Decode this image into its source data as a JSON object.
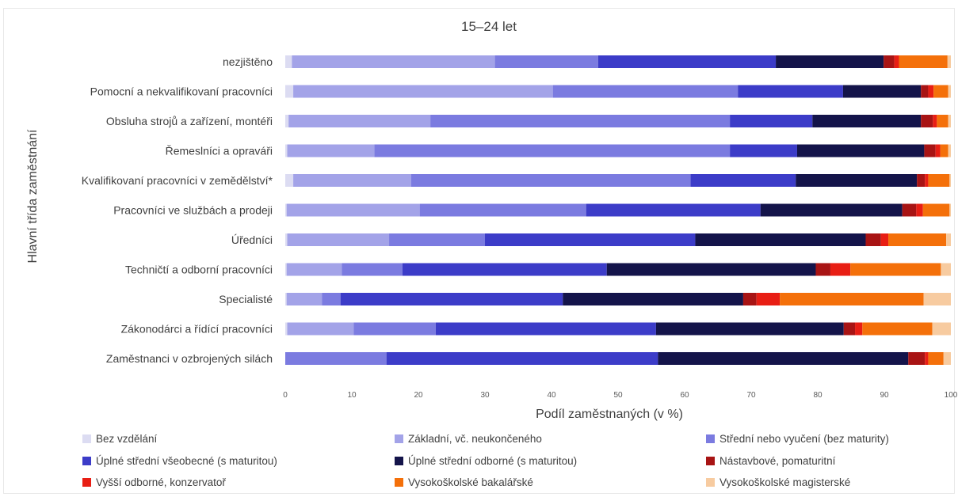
{
  "chart_data": {
    "type": "bar",
    "orientation": "horizontal",
    "stacked": true,
    "title": "15–24 let",
    "xlabel": "Podíl zaměstnaných (v %)",
    "ylabel": "Hlavní třída zaměstnání",
    "xlim": [
      0,
      100
    ],
    "xticks": [
      "0",
      "10",
      "20",
      "30",
      "40",
      "50",
      "60",
      "70",
      "80",
      "90",
      "100"
    ],
    "grid": false,
    "legend_position": "bottom",
    "categories": [
      "nezjištěno",
      "Pomocní a nekvalifikovaní pracovníci",
      "Obsluha strojů a zařízení, montéři",
      "Řemeslníci a opraváři",
      "Kvalifikovaní pracovníci v zemědělství*",
      "Pracovníci ve službách a prodeji",
      "Úředníci",
      "Techničtí a odborní pracovníci",
      "Specialisté",
      "Zákonodárci a řídící pracovníci",
      "Zaměstnanci v ozbrojených silách"
    ],
    "series": [
      {
        "name": "Bez vzdělání",
        "color": "#dcdcf2",
        "values": [
          1.0,
          1.2,
          0.5,
          0.3,
          1.2,
          0.2,
          0.3,
          0.2,
          0.2,
          0.3,
          0.0
        ]
      },
      {
        "name": "Základní, vč. neukončeného",
        "color": "#a3a3e8",
        "values": [
          30.5,
          39.0,
          21.3,
          13.1,
          17.7,
          20.0,
          15.3,
          8.3,
          5.3,
          10.0,
          0.0
        ]
      },
      {
        "name": "Střední nebo vyučení (bez maturity)",
        "color": "#7b7be0",
        "values": [
          15.5,
          27.8,
          45.0,
          53.4,
          42.0,
          25.0,
          14.4,
          9.1,
          2.8,
          12.3,
          15.2
        ]
      },
      {
        "name": "Úplné střední všeobecné (s maturitou)",
        "color": "#3c3cc8",
        "values": [
          26.7,
          15.8,
          12.4,
          10.1,
          15.8,
          26.2,
          31.6,
          30.7,
          33.4,
          33.1,
          40.8
        ]
      },
      {
        "name": "Úplné střední odborné (s maturitou)",
        "color": "#14144a",
        "values": [
          16.2,
          11.7,
          16.3,
          19.1,
          18.2,
          21.3,
          25.6,
          31.4,
          27.1,
          28.2,
          37.6
        ]
      },
      {
        "name": "Nástavbové, pomaturitní",
        "color": "#a81414",
        "values": [
          1.6,
          1.1,
          1.8,
          1.7,
          1.2,
          2.1,
          2.3,
          2.2,
          2.0,
          1.7,
          2.5
        ]
      },
      {
        "name": "Vyšší odborné, konzervatoř",
        "color": "#e81e14",
        "values": [
          0.7,
          0.8,
          0.6,
          0.7,
          0.5,
          1.0,
          1.1,
          3.0,
          3.5,
          1.1,
          0.5
        ]
      },
      {
        "name": "Vysokoškolské bakalářské",
        "color": "#f4700a",
        "values": [
          7.3,
          2.2,
          1.7,
          1.2,
          3.2,
          4.0,
          8.7,
          13.6,
          21.6,
          10.5,
          2.3
        ]
      },
      {
        "name": "Vysokoškolské magisterské",
        "color": "#f7cba0",
        "values": [
          0.5,
          0.4,
          0.4,
          0.4,
          0.2,
          0.2,
          0.7,
          1.5,
          4.1,
          2.8,
          1.1
        ]
      }
    ]
  }
}
